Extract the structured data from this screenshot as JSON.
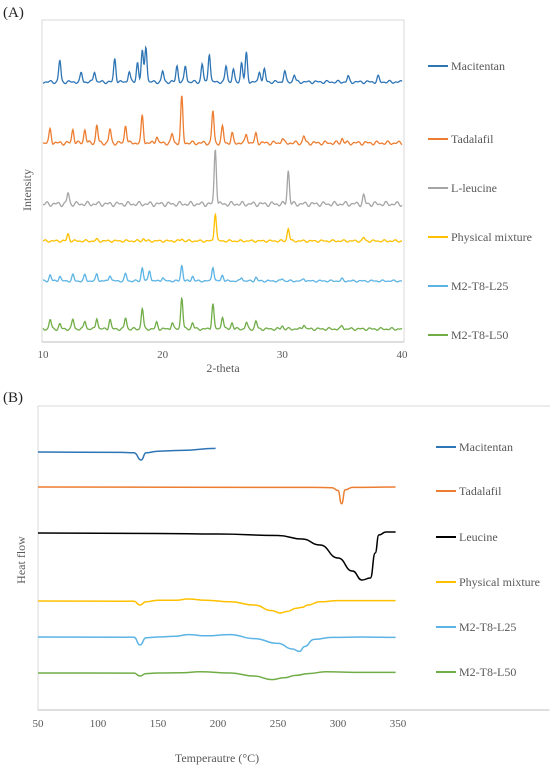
{
  "panels": [
    {
      "panel_label": "(A)",
      "chart_data": {
        "type": "line",
        "xlabel": "2-theta",
        "ylabel": "Intensity",
        "xlim": [
          10,
          40
        ],
        "xticks": [
          "10",
          "20",
          "30",
          "40"
        ],
        "grid": false,
        "legend_position": "right",
        "series": [
          {
            "name": "Macitentan",
            "color": "#2e75b6",
            "peaks": [
              [
                11.4,
                0.6
              ],
              [
                13.2,
                0.25
              ],
              [
                14.3,
                0.3
              ],
              [
                16.0,
                0.65
              ],
              [
                17.2,
                0.3
              ],
              [
                17.9,
                0.55
              ],
              [
                18.3,
                0.85
              ],
              [
                18.6,
                1.0
              ],
              [
                20.0,
                0.3
              ],
              [
                21.2,
                0.45
              ],
              [
                21.9,
                0.45
              ],
              [
                23.3,
                0.5
              ],
              [
                23.9,
                0.8
              ],
              [
                25.3,
                0.45
              ],
              [
                25.9,
                0.35
              ],
              [
                26.6,
                0.55
              ],
              [
                27.0,
                0.8
              ],
              [
                28.1,
                0.3
              ],
              [
                28.5,
                0.35
              ],
              [
                30.2,
                0.3
              ],
              [
                31.0,
                0.2
              ],
              [
                35.5,
                0.15
              ],
              [
                38.0,
                0.15
              ]
            ]
          },
          {
            "name": "Tadalafil",
            "color": "#ed7d31",
            "peaks": [
              [
                10.6,
                0.3
              ],
              [
                12.5,
                0.3
              ],
              [
                13.5,
                0.3
              ],
              [
                14.5,
                0.4
              ],
              [
                15.6,
                0.3
              ],
              [
                16.9,
                0.4
              ],
              [
                18.3,
                0.6
              ],
              [
                19.5,
                0.15
              ],
              [
                20.8,
                0.2
              ],
              [
                21.6,
                1.0
              ],
              [
                24.2,
                0.7
              ],
              [
                25.0,
                0.35
              ],
              [
                25.8,
                0.2
              ],
              [
                27.0,
                0.2
              ],
              [
                27.8,
                0.2
              ],
              [
                30.0,
                0.1
              ],
              [
                31.8,
                0.15
              ],
              [
                35.0,
                0.1
              ]
            ]
          },
          {
            "name": "L-leucine",
            "color": "#a5a5a5",
            "peaks": [
              [
                12.1,
                0.2
              ],
              [
                24.4,
                1.0
              ],
              [
                30.5,
                0.6
              ],
              [
                36.8,
                0.15
              ]
            ]
          },
          {
            "name": "Physical mixture",
            "color": "#ffc000",
            "peaks": [
              [
                12.1,
                0.25
              ],
              [
                14.5,
                0.05
              ],
              [
                18.4,
                0.08
              ],
              [
                21.6,
                0.08
              ],
              [
                24.4,
                1.0
              ],
              [
                30.5,
                0.45
              ],
              [
                36.8,
                0.12
              ]
            ]
          },
          {
            "name": "M2-T8-L25",
            "color": "#5bb4e5",
            "peaks": [
              [
                10.6,
                0.25
              ],
              [
                11.4,
                0.2
              ],
              [
                12.5,
                0.25
              ],
              [
                13.5,
                0.25
              ],
              [
                14.5,
                0.3
              ],
              [
                15.6,
                0.25
              ],
              [
                16.9,
                0.3
              ],
              [
                18.3,
                0.55
              ],
              [
                18.9,
                0.45
              ],
              [
                20.0,
                0.15
              ],
              [
                21.6,
                0.65
              ],
              [
                22.5,
                0.2
              ],
              [
                24.2,
                0.6
              ],
              [
                25.0,
                0.25
              ],
              [
                26.6,
                0.15
              ],
              [
                27.8,
                0.15
              ],
              [
                30.0,
                0.1
              ],
              [
                31.8,
                0.1
              ],
              [
                35.0,
                0.08
              ]
            ]
          },
          {
            "name": "M2-T8-L50",
            "color": "#70ad47",
            "peaks": [
              [
                10.6,
                0.3
              ],
              [
                11.4,
                0.15
              ],
              [
                12.5,
                0.3
              ],
              [
                13.5,
                0.25
              ],
              [
                14.5,
                0.35
              ],
              [
                15.6,
                0.3
              ],
              [
                16.9,
                0.35
              ],
              [
                18.3,
                0.65
              ],
              [
                19.5,
                0.2
              ],
              [
                20.8,
                0.2
              ],
              [
                21.6,
                1.0
              ],
              [
                22.5,
                0.2
              ],
              [
                24.2,
                0.8
              ],
              [
                25.0,
                0.4
              ],
              [
                25.8,
                0.2
              ],
              [
                27.0,
                0.2
              ],
              [
                27.8,
                0.25
              ],
              [
                30.0,
                0.1
              ],
              [
                31.8,
                0.15
              ],
              [
                35.0,
                0.1
              ]
            ]
          }
        ]
      }
    },
    {
      "panel_label": "(B)",
      "chart_data": {
        "type": "line",
        "xlabel": "Temperautre (°C)",
        "ylabel": "Heat flow",
        "xlim": [
          50,
          350
        ],
        "xticks": [
          "50",
          "100",
          "150",
          "200",
          "250",
          "300",
          "350"
        ],
        "grid": false,
        "legend_position": "right",
        "series": [
          {
            "name": "Macitentan",
            "color": "#2e75b6",
            "points": [
              [
                50,
                0
              ],
              [
                120,
                0.05
              ],
              [
                130,
                0.1
              ],
              [
                136,
                1.0
              ],
              [
                140,
                0.1
              ],
              [
                150,
                -0.1
              ],
              [
                170,
                -0.2
              ],
              [
                198,
                -0.45
              ]
            ]
          },
          {
            "name": "Tadalafil",
            "color": "#ed7d31",
            "points": [
              [
                50,
                0
              ],
              [
                280,
                0.05
              ],
              [
                295,
                0.1
              ],
              [
                300,
                0.5
              ],
              [
                303,
                2.4
              ],
              [
                306,
                0.4
              ],
              [
                312,
                0.05
              ],
              [
                348,
                0
              ]
            ]
          },
          {
            "name": "Leucine",
            "color": "#000000",
            "points": [
              [
                50,
                0
              ],
              [
                150,
                0.05
              ],
              [
                200,
                0.1
              ],
              [
                250,
                0.25
              ],
              [
                270,
                0.6
              ],
              [
                285,
                1.2
              ],
              [
                300,
                2.5
              ],
              [
                312,
                3.8
              ],
              [
                320,
                4.7
              ],
              [
                327,
                4.5
              ],
              [
                331,
                2.0
              ],
              [
                334,
                0.2
              ],
              [
                340,
                -0.1
              ],
              [
                348,
                -0.1
              ]
            ]
          },
          {
            "name": "Physical mixture",
            "color": "#ffc000",
            "points": [
              [
                50,
                0
              ],
              [
                130,
                0.02
              ],
              [
                135,
                0.5
              ],
              [
                140,
                0.1
              ],
              [
                150,
                -0.1
              ],
              [
                165,
                -0.1
              ],
              [
                175,
                -0.25
              ],
              [
                190,
                -0.1
              ],
              [
                210,
                0.1
              ],
              [
                230,
                0.5
              ],
              [
                245,
                1.2
              ],
              [
                252,
                1.5
              ],
              [
                258,
                1.3
              ],
              [
                265,
                0.9
              ],
              [
                270,
                0.8
              ],
              [
                275,
                0.5
              ],
              [
                285,
                0.1
              ],
              [
                300,
                -0.05
              ],
              [
                348,
                -0.05
              ]
            ]
          },
          {
            "name": "M2-T8-L25",
            "color": "#5bb4e5",
            "points": [
              [
                50,
                0
              ],
              [
                130,
                0.02
              ],
              [
                135,
                1.0
              ],
              [
                140,
                0.1
              ],
              [
                150,
                0.0
              ],
              [
                165,
                -0.1
              ],
              [
                175,
                -0.3
              ],
              [
                190,
                -0.15
              ],
              [
                210,
                -0.3
              ],
              [
                230,
                0.2
              ],
              [
                250,
                0.8
              ],
              [
                262,
                1.5
              ],
              [
                268,
                1.8
              ],
              [
                272,
                1.2
              ],
              [
                280,
                0.3
              ],
              [
                295,
                0.05
              ],
              [
                320,
                0.0
              ],
              [
                348,
                0.05
              ]
            ]
          },
          {
            "name": "M2-T8-L50",
            "color": "#70ad47",
            "points": [
              [
                50,
                0
              ],
              [
                130,
                0.02
              ],
              [
                135,
                0.5
              ],
              [
                140,
                0.1
              ],
              [
                150,
                0.0
              ],
              [
                170,
                -0.05
              ],
              [
                185,
                -0.2
              ],
              [
                210,
                0.0
              ],
              [
                230,
                0.5
              ],
              [
                245,
                1.1
              ],
              [
                255,
                0.8
              ],
              [
                265,
                0.4
              ],
              [
                275,
                0.1
              ],
              [
                290,
                -0.2
              ],
              [
                320,
                -0.1
              ],
              [
                348,
                -0.1
              ]
            ]
          }
        ]
      }
    }
  ]
}
